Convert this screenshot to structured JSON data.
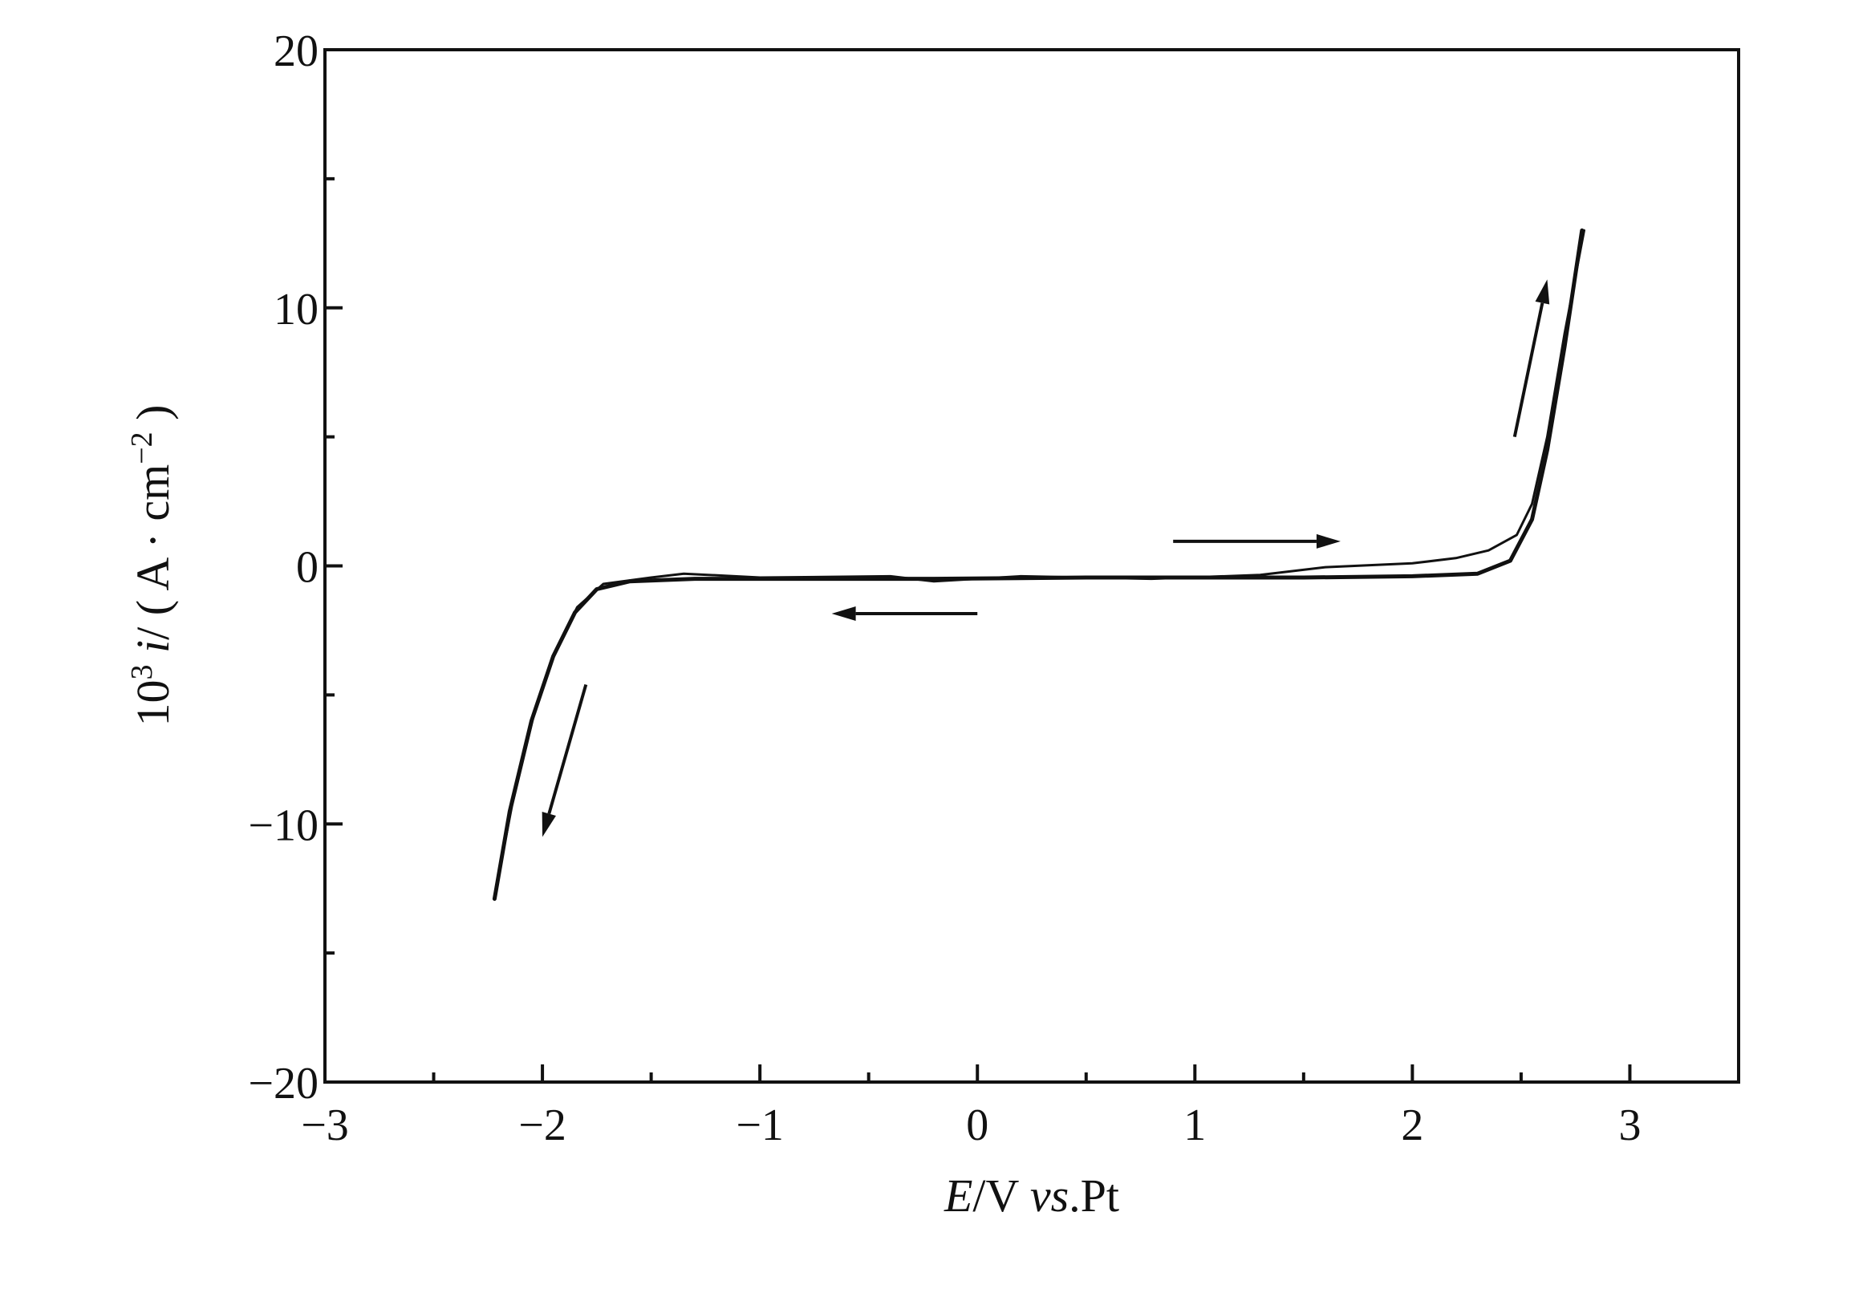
{
  "chart_data": {
    "type": "line",
    "title": "",
    "xlabel": {
      "parts": [
        {
          "text": "E",
          "italic": true
        },
        {
          "text": "/V ",
          "italic": false
        },
        {
          "text": "vs",
          "italic": true
        },
        {
          "text": ".Pt",
          "italic": false
        }
      ]
    },
    "ylabel": {
      "parts": [
        {
          "text": "10",
          "italic": false
        },
        {
          "text": "3",
          "italic": false,
          "sup": true
        },
        {
          "text": " i",
          "italic": true
        },
        {
          "text": "/ ( A · cm",
          "italic": false
        },
        {
          "text": "−2",
          "italic": false,
          "sup": true
        },
        {
          "text": " )",
          "italic": false
        }
      ]
    },
    "xlim": [
      -3,
      3.5
    ],
    "ylim": [
      -20,
      20
    ],
    "xticks": [
      {
        "value": -3,
        "label": "−3"
      },
      {
        "value": -2,
        "label": "−2"
      },
      {
        "value": -1,
        "label": "−1"
      },
      {
        "value": 0,
        "label": "0"
      },
      {
        "value": 1,
        "label": "1"
      },
      {
        "value": 2,
        "label": "2"
      },
      {
        "value": 3,
        "label": "3"
      }
    ],
    "xminor": [
      -2.5,
      -1.5,
      -0.5,
      0.5,
      1.5,
      2.5,
      3.5
    ],
    "yticks": [
      {
        "value": 20,
        "label": "20"
      },
      {
        "value": 10,
        "label": "10"
      },
      {
        "value": 0,
        "label": "0"
      },
      {
        "value": -10,
        "label": "−10"
      },
      {
        "value": -20,
        "label": "−20"
      }
    ],
    "yminor": [
      15,
      5,
      -5,
      -15
    ],
    "grid": false,
    "series": [
      {
        "stroke": "#111111",
        "width": 5,
        "points": [
          [
            -2.22,
            -12.9
          ],
          [
            -2.15,
            -9.5
          ],
          [
            -2.05,
            -6.0
          ],
          [
            -1.95,
            -3.5
          ],
          [
            -1.85,
            -1.8
          ],
          [
            -1.75,
            -0.9
          ],
          [
            -1.6,
            -0.6
          ],
          [
            -1.3,
            -0.5
          ],
          [
            -0.8,
            -0.5
          ],
          [
            -0.2,
            -0.5
          ],
          [
            0.5,
            -0.45
          ],
          [
            1.0,
            -0.45
          ],
          [
            1.5,
            -0.45
          ],
          [
            2.0,
            -0.4
          ],
          [
            2.3,
            -0.3
          ],
          [
            2.45,
            0.2
          ],
          [
            2.55,
            1.8
          ],
          [
            2.62,
            4.5
          ],
          [
            2.7,
            8.5
          ],
          [
            2.78,
            13.0
          ]
        ]
      },
      {
        "stroke": "#111111",
        "width": 3,
        "points": [
          [
            -2.22,
            -12.8
          ],
          [
            -2.14,
            -9.3
          ],
          [
            -2.04,
            -5.8
          ],
          [
            -1.94,
            -3.3
          ],
          [
            -1.84,
            -1.6
          ],
          [
            -1.72,
            -0.7
          ],
          [
            -1.5,
            -0.45
          ],
          [
            -1.35,
            -0.3
          ],
          [
            -1.0,
            -0.45
          ],
          [
            -0.4,
            -0.4
          ],
          [
            -0.2,
            -0.6
          ],
          [
            0.2,
            -0.4
          ],
          [
            0.8,
            -0.5
          ],
          [
            1.3,
            -0.35
          ],
          [
            1.6,
            -0.05
          ],
          [
            2.0,
            0.1
          ],
          [
            2.2,
            0.3
          ],
          [
            2.35,
            0.6
          ],
          [
            2.48,
            1.2
          ],
          [
            2.55,
            2.4
          ],
          [
            2.62,
            5.0
          ],
          [
            2.7,
            9.0
          ],
          [
            2.79,
            13.0
          ]
        ]
      }
    ],
    "arrows": [
      {
        "from": [
          -1.8,
          -4.6
        ],
        "to": [
          -2.0,
          -10.5
        ]
      },
      {
        "from": [
          0.0,
          -1.85
        ],
        "to": [
          -0.67,
          -1.85
        ]
      },
      {
        "from": [
          0.9,
          0.95
        ],
        "to": [
          1.67,
          0.95
        ]
      },
      {
        "from": [
          2.47,
          5.0
        ],
        "to": [
          2.62,
          11.1
        ]
      }
    ]
  }
}
